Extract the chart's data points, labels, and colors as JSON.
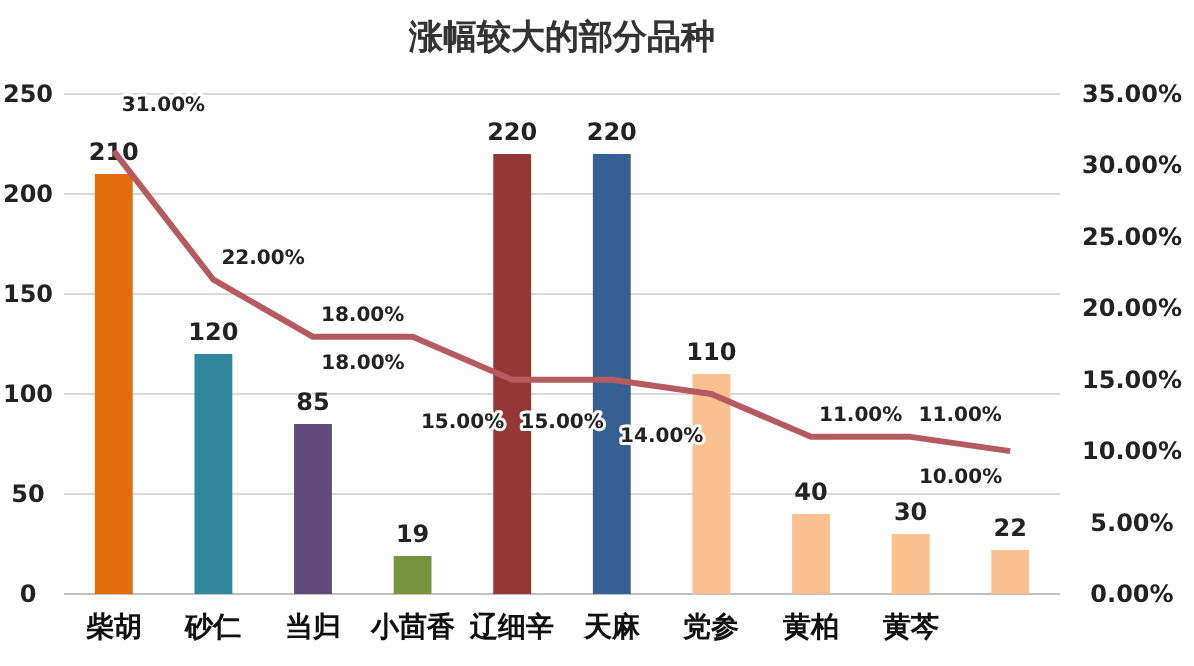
{
  "chart_data": {
    "type": "bar",
    "title": "涨幅较大的部分品种",
    "categories": [
      "柴胡",
      "砂仁",
      "当归",
      "小茴香",
      "辽细辛",
      "天麻",
      "党参",
      "黄柏",
      "黄芩",
      null
    ],
    "series": [
      {
        "type": "bar",
        "colors": [
          "#e36c0a",
          "#31859c",
          "#604a7b",
          "#77933c",
          "#953735",
          "#376092",
          "#fac090",
          "#fac090",
          "#fac090",
          "#fac090"
        ],
        "values": [
          210,
          120,
          85,
          19,
          220,
          220,
          110,
          40,
          30,
          22
        ],
        "value_labels": [
          "210",
          "120",
          "85",
          "19",
          "220",
          "220",
          "110",
          "40",
          "30",
          "22"
        ]
      },
      {
        "type": "line",
        "axis": "y2",
        "color": "#b55a5e",
        "values": [
          31,
          22,
          18,
          18,
          15,
          15,
          14,
          11,
          11,
          10
        ],
        "value_labels": [
          "31.00%",
          "22.00%",
          "18.00%",
          "18.00%",
          "15.00%",
          "15.00%",
          "14.00%",
          "11.00%",
          "11.00%",
          "10.00%"
        ]
      }
    ],
    "ylim": [
      0,
      250
    ],
    "yticks": [
      0,
      50,
      100,
      150,
      200,
      250
    ],
    "y2lim": [
      0,
      35
    ],
    "y2ticks": [
      {
        "value": 0,
        "label": "0.00%"
      },
      {
        "value": 5,
        "label": "5.00%"
      },
      {
        "value": 10,
        "label": "10.00%"
      },
      {
        "value": 15,
        "label": "15.00%"
      },
      {
        "value": 20,
        "label": "20.00%"
      },
      {
        "value": 25,
        "label": "25.00%"
      },
      {
        "value": 30,
        "label": "30.00%"
      },
      {
        "value": 35,
        "label": "35.00%"
      }
    ],
    "grid": "y"
  }
}
